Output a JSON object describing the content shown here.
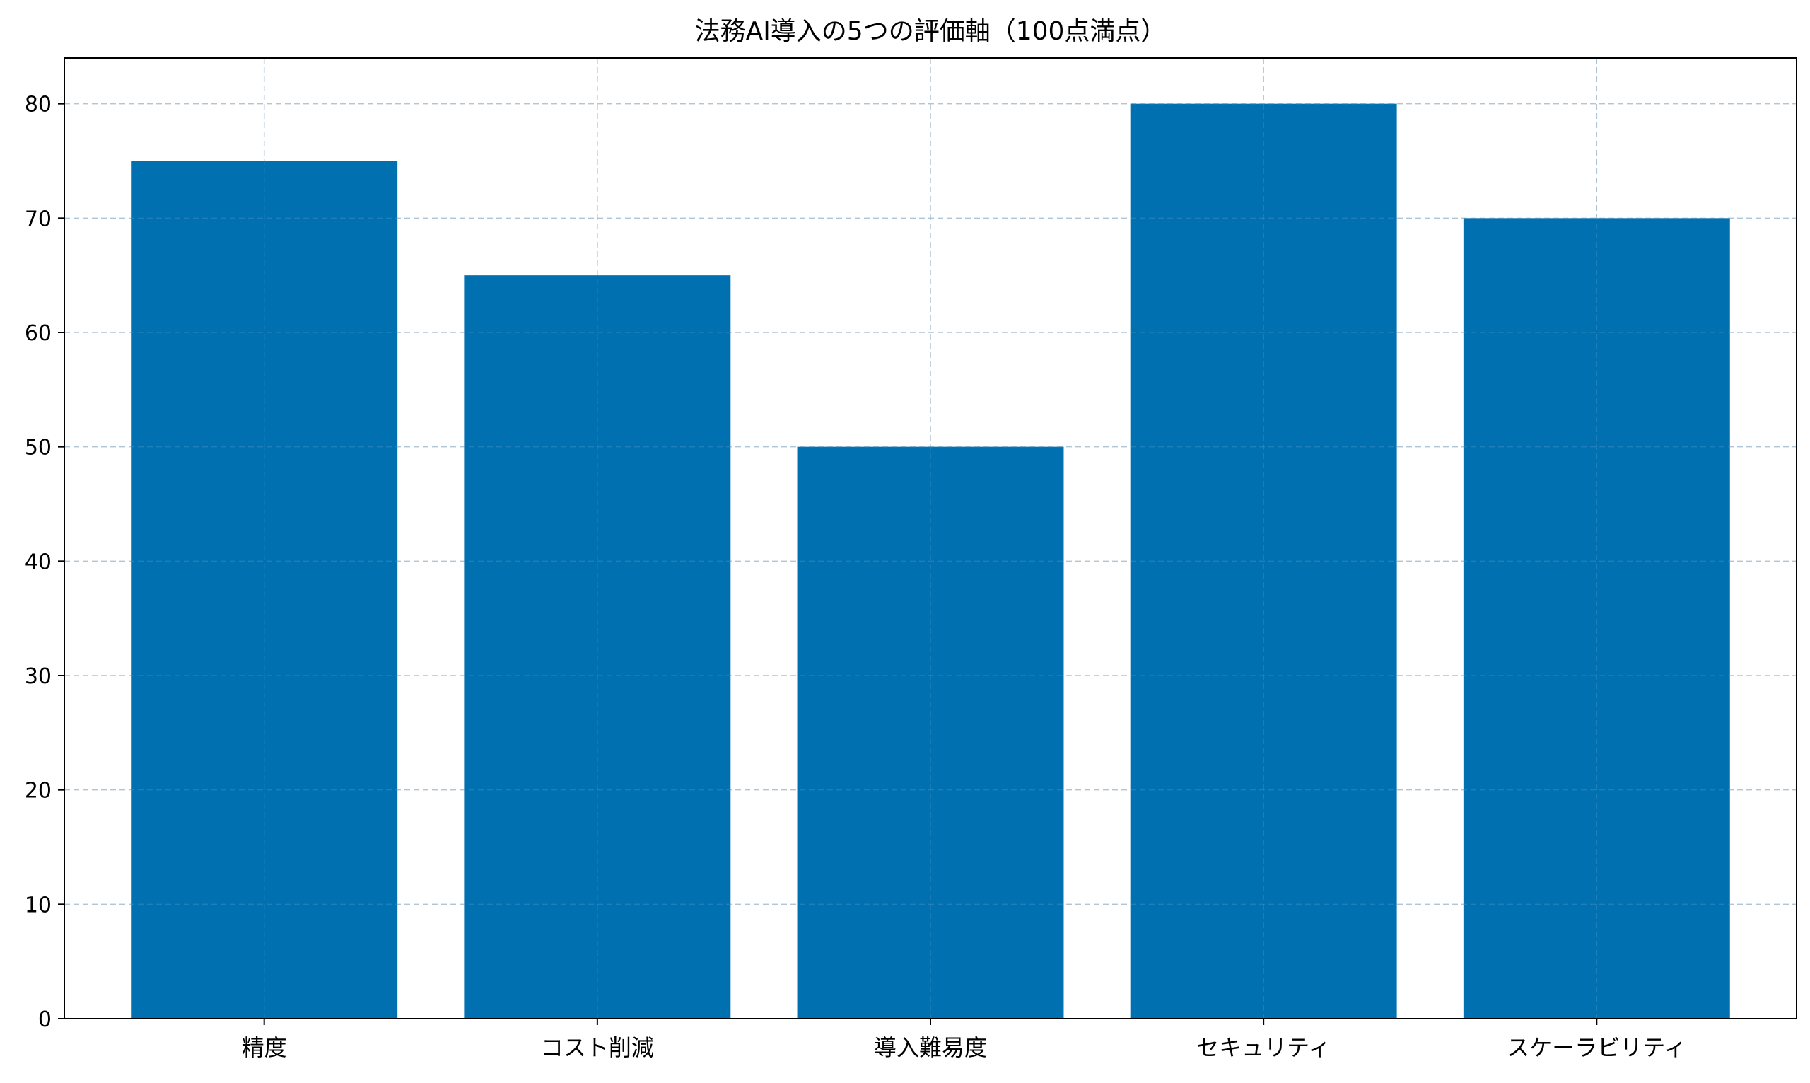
{
  "chart_data": {
    "type": "bar",
    "title": "法務AI導入の5つの評価軸（100点満点）",
    "xlabel": "",
    "ylabel": "",
    "categories": [
      "精度",
      "コスト削減",
      "導入難易度",
      "セキュリティ",
      "スケーラビリティ"
    ],
    "values": [
      75,
      65,
      50,
      80,
      70
    ],
    "ylim": [
      0,
      84
    ],
    "yticks": [
      0,
      10,
      20,
      30,
      40,
      50,
      60,
      70,
      80
    ],
    "grid": true,
    "legend": "none",
    "bar_color": "#0070b0"
  }
}
